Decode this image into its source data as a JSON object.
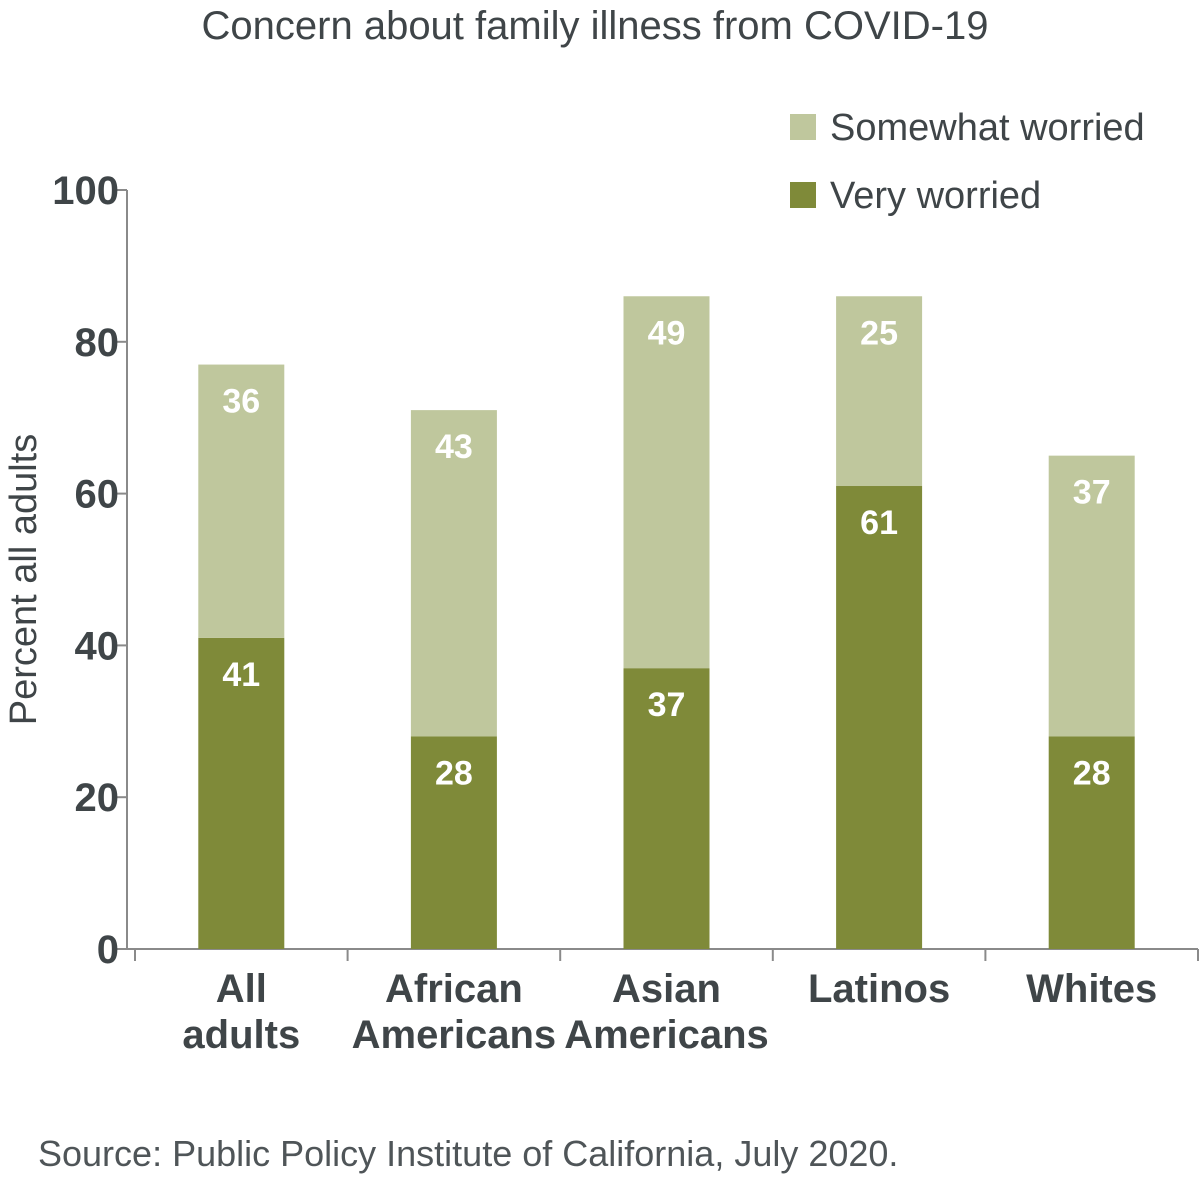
{
  "chart_data": {
    "type": "bar",
    "stacked": true,
    "title": "Concern about family illness from COVID-19",
    "ylabel": "Percent all adults",
    "xlabel": "",
    "ylim": [
      0,
      100
    ],
    "yticks": [
      "0",
      "20",
      "40",
      "60",
      "80",
      "100"
    ],
    "categories": [
      [
        "All",
        "adults"
      ],
      [
        "African",
        "Americans"
      ],
      [
        "Asian",
        "Americans"
      ],
      [
        "Latinos"
      ],
      [
        "Whites"
      ]
    ],
    "series": [
      {
        "name": "Very worried",
        "values": [
          41,
          28,
          37,
          61,
          28
        ],
        "color": "#7f8a39"
      },
      {
        "name": "Somewhat worried",
        "values": [
          36,
          43,
          49,
          25,
          37
        ],
        "color": "#bfc79d"
      }
    ],
    "legend_order": [
      "Somewhat worried",
      "Very worried"
    ],
    "legend_position": "top-right",
    "grid": false,
    "data_labels": true
  },
  "source": "Source: Public Policy Institute of California, July 2020."
}
